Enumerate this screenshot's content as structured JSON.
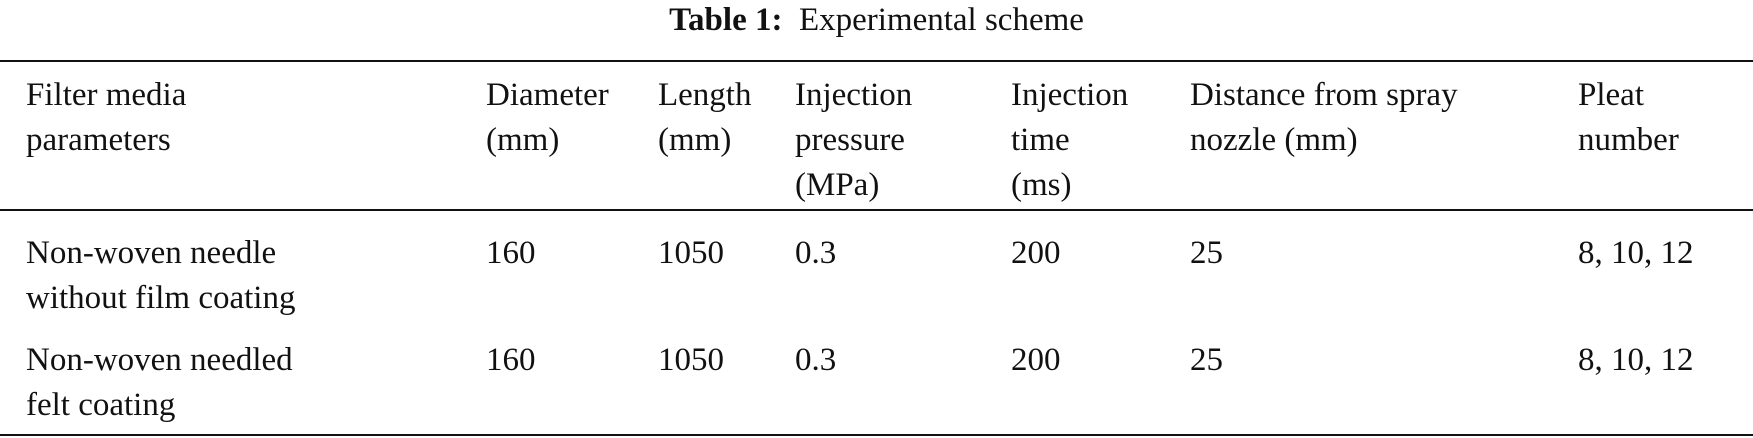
{
  "caption": {
    "label": "Table 1:",
    "title": "Experimental scheme"
  },
  "table": {
    "headers": [
      [
        "Filter media",
        "parameters"
      ],
      [
        "Diameter",
        "(mm)"
      ],
      [
        "Length",
        "(mm)"
      ],
      [
        "Injection",
        "pressure",
        "(MPa)"
      ],
      [
        "Injection",
        "time",
        "(ms)"
      ],
      [
        "Distance from spray",
        "nozzle (mm)"
      ],
      [
        "Pleat",
        "number"
      ]
    ],
    "rows": [
      {
        "media": [
          "Non-woven needle",
          "without film coating"
        ],
        "diameter": "160",
        "length": "1050",
        "pressure": "0.3",
        "time": "200",
        "distance": "25",
        "pleats": "8, 10, 12"
      },
      {
        "media": [
          "Non-woven needled",
          "felt coating"
        ],
        "diameter": "160",
        "length": "1050",
        "pressure": "0.3",
        "time": "200",
        "distance": "25",
        "pleats": "8, 10, 12"
      }
    ]
  }
}
